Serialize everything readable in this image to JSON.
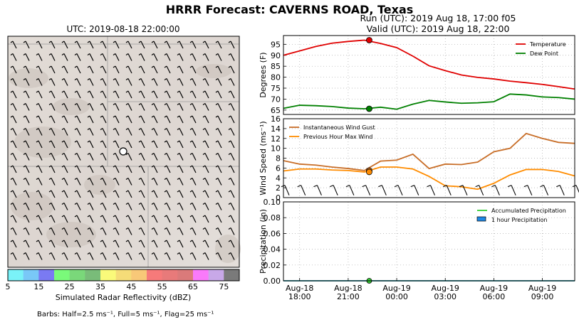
{
  "suptitle": "HRRR Forecast: CAVERNS ROAD, Texas",
  "map": {
    "title": "UTC: 2019-08-18 22:00:00",
    "colorbar_ticks": [
      "5",
      "15",
      "25",
      "35",
      "45",
      "55",
      "65",
      "75"
    ],
    "colorbar_label": "Simulated Radar Reflectivity (dBZ)",
    "colorbar_colors": [
      "#7af2f8",
      "#79c8f7",
      "#7a7af2",
      "#7afa7a",
      "#7ad87a",
      "#79bc79",
      "#fafa7a",
      "#f5dc78",
      "#f8c878",
      "#f67a7a",
      "#e87a7a",
      "#da7a7a",
      "#fa7afa",
      "#c8a8e8",
      "#7a7a7a"
    ],
    "barb_note": "Barbs: Half=2.5 ms⁻¹, Full=5 ms⁻¹, Flag=25 ms⁻¹"
  },
  "run_title": "Run (UTC): 2019 Aug 18, 17:00 f05",
  "valid_title": "Valid (UTC): 2019 Aug 18, 22:00",
  "chart_data": [
    {
      "type": "line",
      "ylabel": "Degrees (F)",
      "ylim": [
        63,
        99
      ],
      "yticks": [
        65,
        70,
        75,
        80,
        85,
        90,
        95
      ],
      "x": [
        17,
        18,
        19,
        20,
        21,
        22,
        23,
        0,
        1,
        2,
        3,
        4,
        5,
        6,
        7,
        8,
        9,
        10,
        11
      ],
      "series": [
        {
          "name": "Temperature",
          "color": "#e00000",
          "values": [
            90,
            92,
            94,
            95.5,
            96.3,
            96.9,
            95.4,
            93.5,
            89.6,
            85.2,
            83,
            81,
            79.9,
            79.2,
            78.2,
            77.5,
            76.7,
            75.7,
            74.6
          ]
        },
        {
          "name": "Dew Point",
          "color": "#008000",
          "values": [
            65.8,
            67.2,
            67.0,
            66.6,
            65.9,
            65.6,
            66.3,
            65.4,
            67.7,
            69.4,
            68.7,
            68.1,
            68.3,
            68.8,
            72.3,
            71.9,
            71.0,
            70.7,
            70.0
          ]
        }
      ],
      "marker": {
        "x": 22.3,
        "temperature": 96.9,
        "dew_point": 65.6
      },
      "legend": "top-right",
      "grid": true
    },
    {
      "type": "line",
      "ylabel": "Wind Speed (ms⁻¹)",
      "ylim": [
        0,
        16
      ],
      "yticks": [
        0,
        2,
        4,
        6,
        8,
        10,
        12,
        14,
        16
      ],
      "x": [
        17,
        18,
        19,
        20,
        21,
        22,
        23,
        0,
        1,
        2,
        3,
        4,
        5,
        6,
        7,
        8,
        9,
        10,
        11
      ],
      "series": [
        {
          "name": "Instantaneous Wind Gust",
          "color": "#c86e28",
          "values": [
            7.5,
            6.8,
            6.6,
            6.2,
            5.9,
            5.5,
            7.4,
            7.6,
            8.8,
            5.9,
            6.8,
            6.7,
            7.2,
            9.3,
            10.0,
            13.0,
            12.0,
            11.2,
            11.0
          ]
        },
        {
          "name": "Previous Hour Max Wind",
          "color": "#ff8c00",
          "values": [
            5.4,
            5.8,
            5.8,
            5.6,
            5.5,
            5.2,
            6.2,
            6.2,
            5.8,
            4.3,
            2.4,
            2.2,
            1.7,
            2.9,
            4.6,
            5.7,
            5.7,
            5.3,
            4.4
          ]
        }
      ],
      "marker": {
        "x": 22.3,
        "gust": 5.5,
        "max_wind": 5.2
      },
      "legend": "top-left",
      "grid": true
    },
    {
      "type": "line",
      "ylabel": "Precipitation (in)",
      "ylim": [
        0,
        0.1
      ],
      "yticks": [
        "0.00",
        "0.02",
        "0.04",
        "0.06",
        "0.08",
        "0.10"
      ],
      "xticks": [
        {
          "x": 18,
          "date": "Aug-18",
          "time": "18:00"
        },
        {
          "x": 21,
          "date": "Aug-18",
          "time": "21:00"
        },
        {
          "x": 24,
          "date": "Aug-19",
          "time": "00:00"
        },
        {
          "x": 27,
          "date": "Aug-19",
          "time": "03:00"
        },
        {
          "x": 30,
          "date": "Aug-19",
          "time": "06:00"
        },
        {
          "x": 33,
          "date": "Aug-19",
          "time": "09:00"
        }
      ],
      "series": [
        {
          "name": "Accumulated Precipitation",
          "color": "#33cc33",
          "values": [
            0,
            0,
            0,
            0,
            0,
            0,
            0,
            0,
            0,
            0,
            0,
            0,
            0,
            0,
            0,
            0,
            0,
            0,
            0
          ]
        },
        {
          "name": "1 hour Precipitation",
          "color": "#1e88e5",
          "values": [
            0,
            0,
            0,
            0,
            0,
            0,
            0,
            0,
            0,
            0,
            0,
            0,
            0,
            0,
            0,
            0,
            0,
            0,
            0
          ]
        }
      ],
      "marker": {
        "x": 22.3,
        "value": 0
      },
      "legend": "top-right",
      "grid": true
    }
  ]
}
